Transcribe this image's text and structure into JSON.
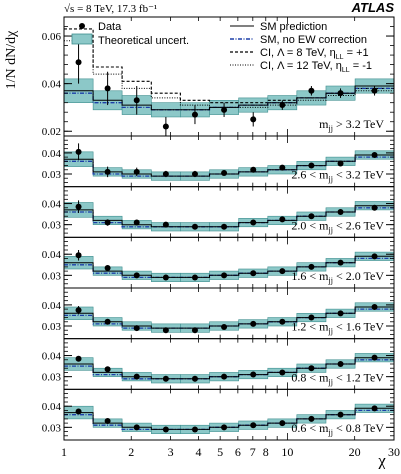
{
  "header": {
    "energy_label": "√s = 8 TeV, 17.3 fb⁻¹",
    "experiment": "ATLAS"
  },
  "ylabel": "1/N dN/dχ",
  "xlabel": "χ",
  "x_ticks": [
    "1",
    "2",
    "3",
    "4",
    "5",
    "6",
    "7",
    "8",
    "10",
    "20",
    "30"
  ],
  "legend": {
    "left": [
      {
        "key": "data",
        "label": "Data"
      },
      {
        "key": "syst",
        "label": "Theoretical uncert."
      }
    ],
    "right": [
      {
        "key": "sm",
        "label": "SM prediction"
      },
      {
        "key": "noew",
        "label": "SM, no EW correction"
      },
      {
        "key": "ci8",
        "label": "CI, Λ = 8 TeV, η",
        "sub": "LL",
        "suffix": " = +1"
      },
      {
        "key": "ci12",
        "label": "CI, Λ = 12 TeV, η",
        "sub": "LL",
        "suffix": " = -1"
      }
    ]
  },
  "colors": {
    "band": "#8cc8c8",
    "band_edge": "#3e8e8e",
    "sm_line": "#000000",
    "noew_line": "#1c3fa8",
    "data": "#000000"
  },
  "chart_data": {
    "type": "line",
    "x_scale": "log",
    "xlim": [
      1,
      30
    ],
    "bin_edges": [
      1.0,
      1.35,
      1.82,
      2.46,
      3.32,
      4.48,
      6.05,
      8.17,
      11.02,
      14.88,
      20.09,
      30.0
    ],
    "panels": [
      {
        "label": "m",
        "label_sub": "jj",
        "label_suffix": " > 3.2 TeV",
        "ylim": [
          0.018,
          0.068
        ],
        "y_ticks": [
          0.02,
          0.04,
          0.06
        ],
        "y_tick_labels": [
          "0.02",
          "0.04",
          "0.06"
        ],
        "sm": [
          0.037,
          0.033,
          0.031,
          0.029,
          0.029,
          0.03,
          0.031,
          0.032,
          0.034,
          0.036,
          0.039
        ],
        "band": [
          0.005,
          0.004,
          0.004,
          0.003,
          0.003,
          0.003,
          0.003,
          0.003,
          0.003,
          0.003,
          0.003
        ],
        "noew": [
          0.036,
          0.032,
          0.03,
          0.029,
          0.029,
          0.03,
          0.031,
          0.032,
          0.034,
          0.036,
          0.038
        ],
        "ci8": [
          0.063,
          0.047,
          0.041,
          0.036,
          0.033,
          0.032,
          0.032,
          0.033,
          0.034,
          0.036,
          0.038
        ],
        "ci12": [
          0.058,
          0.044,
          0.038,
          0.034,
          0.031,
          0.03,
          0.03,
          0.031,
          0.033,
          0.035,
          0.037
        ],
        "data": [
          0.049,
          0.038,
          0.033,
          0.022,
          0.027,
          0.029,
          0.025,
          0.031,
          0.037,
          0.036,
          0.037
        ],
        "data_err": [
          0.009,
          0.007,
          0.006,
          0.004,
          0.004,
          0.003,
          0.003,
          0.002,
          0.002,
          0.002,
          0.002
        ]
      },
      {
        "label": "2.6 < m",
        "label_sub": "jj",
        "label_suffix": " < 3.2 TeV",
        "ylim": [
          0.024,
          0.048
        ],
        "y_ticks": [
          0.03,
          0.04
        ],
        "y_tick_labels": [
          "0.03",
          "0.04"
        ],
        "sm": [
          0.037,
          0.031,
          0.03,
          0.029,
          0.029,
          0.03,
          0.031,
          0.032,
          0.034,
          0.036,
          0.039
        ],
        "band": [
          0.0035,
          0.002,
          0.002,
          0.002,
          0.002,
          0.002,
          0.002,
          0.002,
          0.002,
          0.002,
          0.002
        ],
        "noew": [
          0.036,
          0.03,
          0.029,
          0.029,
          0.029,
          0.03,
          0.031,
          0.032,
          0.034,
          0.036,
          0.038
        ],
        "data": [
          0.0405,
          0.031,
          0.031,
          0.03,
          0.03,
          0.0305,
          0.032,
          0.033,
          0.034,
          0.035,
          0.039
        ],
        "data_err": [
          0.004,
          0.0025,
          0.002,
          0.0015,
          0.0015,
          0.0012,
          0.001,
          0.001,
          0.001,
          0.001,
          0.001
        ]
      },
      {
        "label": "2.0 < m",
        "label_sub": "jj",
        "label_suffix": " < 2.6 TeV",
        "ylim": [
          0.024,
          0.048
        ],
        "y_ticks": [
          0.03,
          0.04
        ],
        "y_tick_labels": [
          "0.03",
          "0.04"
        ],
        "sm": [
          0.037,
          0.032,
          0.03,
          0.029,
          0.029,
          0.029,
          0.031,
          0.032,
          0.034,
          0.036,
          0.039
        ],
        "band": [
          0.0035,
          0.002,
          0.002,
          0.002,
          0.002,
          0.002,
          0.002,
          0.002,
          0.002,
          0.002,
          0.002
        ],
        "noew": [
          0.036,
          0.031,
          0.029,
          0.029,
          0.029,
          0.029,
          0.031,
          0.032,
          0.034,
          0.036,
          0.038
        ],
        "data": [
          0.0385,
          0.031,
          0.031,
          0.03,
          0.029,
          0.029,
          0.031,
          0.0325,
          0.034,
          0.036,
          0.038
        ],
        "data_err": [
          0.003,
          0.0015,
          0.0012,
          0.001,
          0.001,
          0.0008,
          0.0008,
          0.0008,
          0.0008,
          0.0008,
          0.0008
        ]
      },
      {
        "label": "1.6 < m",
        "label_sub": "jj",
        "label_suffix": " < 2.0 TeV",
        "ylim": [
          0.024,
          0.048
        ],
        "y_ticks": [
          0.03,
          0.04
        ],
        "y_tick_labels": [
          "0.03",
          "0.04"
        ],
        "sm": [
          0.036,
          0.032,
          0.03,
          0.029,
          0.029,
          0.03,
          0.031,
          0.032,
          0.034,
          0.036,
          0.039
        ],
        "band": [
          0.003,
          0.002,
          0.002,
          0.002,
          0.002,
          0.002,
          0.002,
          0.002,
          0.002,
          0.002,
          0.002
        ],
        "noew": [
          0.035,
          0.031,
          0.029,
          0.029,
          0.029,
          0.03,
          0.031,
          0.032,
          0.034,
          0.036,
          0.038
        ],
        "data": [
          0.0395,
          0.0335,
          0.03,
          0.029,
          0.029,
          0.03,
          0.031,
          0.032,
          0.034,
          0.036,
          0.039
        ],
        "data_err": [
          0.0025,
          0.0012,
          0.0008,
          0.0007,
          0.0006,
          0.0006,
          0.0006,
          0.0006,
          0.0006,
          0.0006,
          0.0006
        ]
      },
      {
        "label": "1.2 < m",
        "label_sub": "jj",
        "label_suffix": " < 1.6 TeV",
        "ylim": [
          0.024,
          0.048
        ],
        "y_ticks": [
          0.03,
          0.04
        ],
        "y_tick_labels": [
          "0.03",
          "0.04"
        ],
        "sm": [
          0.036,
          0.032,
          0.03,
          0.029,
          0.029,
          0.03,
          0.031,
          0.032,
          0.034,
          0.036,
          0.039
        ],
        "band": [
          0.003,
          0.002,
          0.002,
          0.002,
          0.002,
          0.002,
          0.002,
          0.002,
          0.002,
          0.002,
          0.002
        ],
        "noew": [
          0.035,
          0.031,
          0.029,
          0.029,
          0.029,
          0.03,
          0.031,
          0.032,
          0.034,
          0.036,
          0.038
        ],
        "data": [
          0.0375,
          0.032,
          0.029,
          0.028,
          0.028,
          0.0295,
          0.031,
          0.032,
          0.034,
          0.036,
          0.039
        ],
        "data_err": [
          0.002,
          0.0008,
          0.0006,
          0.0005,
          0.0005,
          0.0005,
          0.0005,
          0.0005,
          0.0005,
          0.0005,
          0.0005
        ]
      },
      {
        "label": "0.8 < m",
        "label_sub": "jj",
        "label_suffix": " < 1.2 TeV",
        "ylim": [
          0.024,
          0.048
        ],
        "y_ticks": [
          0.03,
          0.04
        ],
        "y_tick_labels": [
          "0.03",
          "0.04"
        ],
        "sm": [
          0.036,
          0.032,
          0.03,
          0.029,
          0.029,
          0.03,
          0.031,
          0.032,
          0.034,
          0.036,
          0.039
        ],
        "band": [
          0.003,
          0.002,
          0.002,
          0.002,
          0.002,
          0.002,
          0.002,
          0.002,
          0.002,
          0.002,
          0.002
        ],
        "noew": [
          0.035,
          0.031,
          0.029,
          0.029,
          0.029,
          0.03,
          0.031,
          0.032,
          0.034,
          0.036,
          0.038
        ],
        "data": [
          0.0385,
          0.0335,
          0.03,
          0.029,
          0.029,
          0.03,
          0.031,
          0.032,
          0.034,
          0.036,
          0.039
        ],
        "data_err": [
          0.0012,
          0.0006,
          0.0005,
          0.0004,
          0.0004,
          0.0004,
          0.0004,
          0.0004,
          0.0004,
          0.0004,
          0.0004
        ]
      },
      {
        "label": "0.6 < m",
        "label_sub": "jj",
        "label_suffix": " < 0.8 TeV",
        "ylim": [
          0.024,
          0.048
        ],
        "y_ticks": [
          0.03,
          0.04
        ],
        "y_tick_labels": [
          "0.03",
          "0.04"
        ],
        "sm": [
          0.037,
          0.032,
          0.03,
          0.029,
          0.029,
          0.03,
          0.031,
          0.032,
          0.034,
          0.036,
          0.039
        ],
        "band": [
          0.003,
          0.002,
          0.002,
          0.002,
          0.002,
          0.002,
          0.002,
          0.002,
          0.002,
          0.002,
          0.002
        ],
        "noew": [
          0.036,
          0.031,
          0.029,
          0.029,
          0.029,
          0.03,
          0.031,
          0.032,
          0.034,
          0.036,
          0.038
        ],
        "data": [
          0.0375,
          0.033,
          0.03,
          0.029,
          0.029,
          0.03,
          0.031,
          0.032,
          0.034,
          0.036,
          0.039
        ],
        "data_err": [
          0.001,
          0.0005,
          0.0004,
          0.0004,
          0.0004,
          0.0004,
          0.0004,
          0.0004,
          0.0004,
          0.0004,
          0.0004
        ]
      }
    ]
  }
}
